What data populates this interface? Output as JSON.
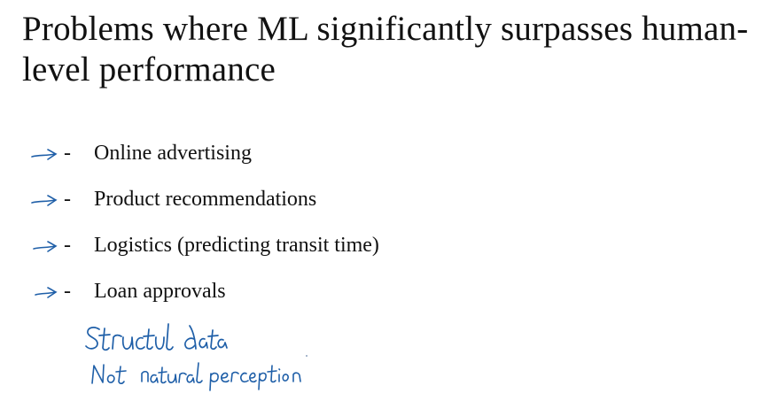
{
  "slide": {
    "title": "Problems where ML significantly surpasses human-level performance",
    "bullet_marker": "-",
    "bullets": [
      "Online advertising",
      "Product recommendations",
      "Logistics (predicting transit time)",
      "Loan approvals"
    ],
    "handwritten_notes": [
      "Structured data",
      "Not natural perception"
    ],
    "ink_color": "#1f5fa8"
  }
}
